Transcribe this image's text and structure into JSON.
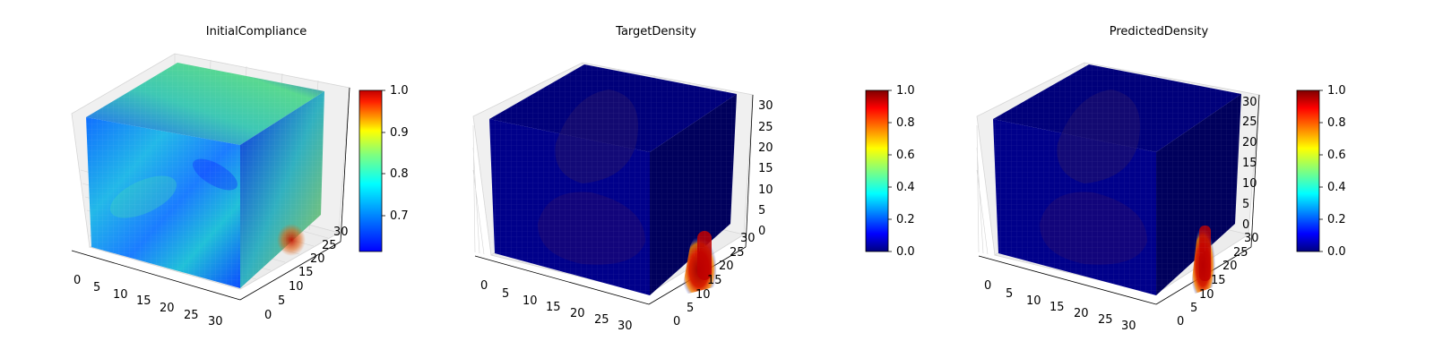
{
  "chart_data": [
    {
      "type": "heatmap",
      "title": "InitialCompliance",
      "colormap": "jet",
      "colorbar": {
        "range": [
          0.62,
          1.0
        ],
        "ticks": [
          "0.7",
          "0.8",
          "0.9",
          "1.0"
        ],
        "values": [
          0.7,
          0.8,
          0.9,
          1.0
        ]
      },
      "axes": {
        "x_ticks": [
          "0",
          "5",
          "10",
          "15",
          "20",
          "25",
          "30"
        ],
        "y_ticks": [
          "0",
          "5",
          "10",
          "15",
          "20",
          "25",
          "30"
        ],
        "z_ticks": []
      },
      "grid": true
    },
    {
      "type": "heatmap",
      "title": "TargetDensity",
      "colormap": "jet",
      "colorbar": {
        "range": [
          0.0,
          1.0
        ],
        "ticks": [
          "0.0",
          "0.2",
          "0.4",
          "0.6",
          "0.8",
          "1.0"
        ],
        "values": [
          0.0,
          0.2,
          0.4,
          0.6,
          0.8,
          1.0
        ]
      },
      "axes": {
        "x_ticks": [
          "0",
          "5",
          "10",
          "15",
          "20",
          "25",
          "30"
        ],
        "y_ticks": [
          "0",
          "5",
          "10",
          "15",
          "20",
          "25",
          "30"
        ],
        "z_ticks": [
          "0",
          "5",
          "10",
          "15",
          "20",
          "25",
          "30"
        ]
      },
      "grid": true
    },
    {
      "type": "heatmap",
      "title": "PredictedDensity",
      "colormap": "jet",
      "colorbar": {
        "range": [
          0.0,
          1.0
        ],
        "ticks": [
          "0.0",
          "0.2",
          "0.4",
          "0.6",
          "0.8",
          "1.0"
        ],
        "values": [
          0.0,
          0.2,
          0.4,
          0.6,
          0.8,
          1.0
        ]
      },
      "axes": {
        "x_ticks": [
          "0",
          "5",
          "10",
          "15",
          "20",
          "25",
          "30"
        ],
        "y_ticks": [
          "0",
          "5",
          "10",
          "15",
          "20",
          "25",
          "30"
        ],
        "z_ticks": [
          "0",
          "5",
          "10",
          "15",
          "20",
          "25",
          "30"
        ]
      },
      "grid": true
    }
  ]
}
